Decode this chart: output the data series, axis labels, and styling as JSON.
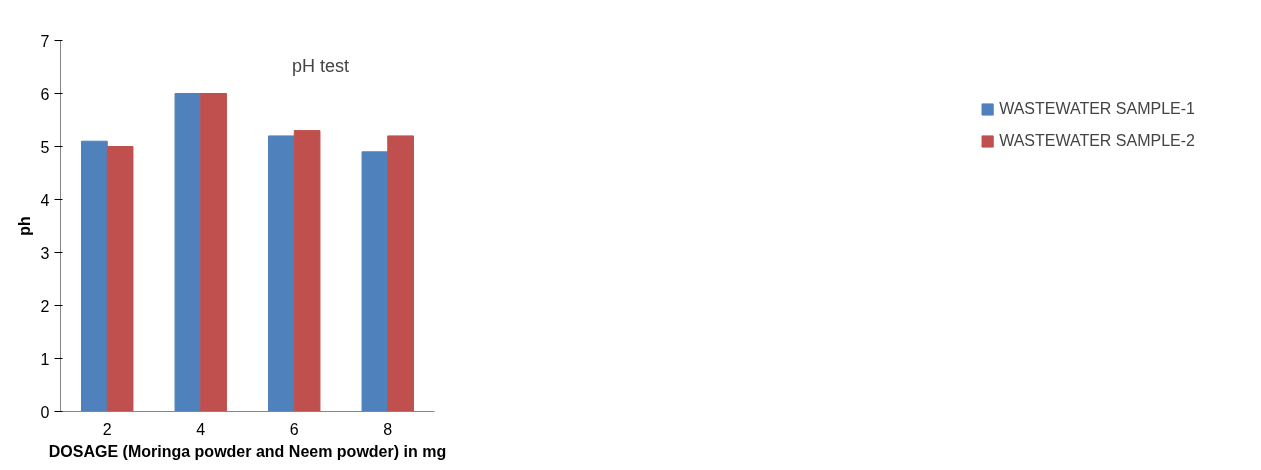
{
  "chart_data": {
    "type": "bar",
    "title": "pH test",
    "xlabel": "DOSAGE (Moringa powder and Neem powder) in mg",
    "ylabel": "ph",
    "categories": [
      "2",
      "4",
      "6",
      "8"
    ],
    "series": [
      {
        "name": "WASTEWATER SAMPLE-1",
        "color": "#4f81bd",
        "values": [
          5.1,
          6.0,
          5.2,
          4.9
        ]
      },
      {
        "name": "WASTEWATER SAMPLE-2",
        "color": "#c0504d",
        "values": [
          5.0,
          6.0,
          5.3,
          5.2
        ]
      }
    ],
    "ylim": [
      0,
      7
    ],
    "yticks": [
      0,
      1,
      2,
      3,
      4,
      5,
      6,
      7
    ],
    "grid": false,
    "legend": "right"
  }
}
